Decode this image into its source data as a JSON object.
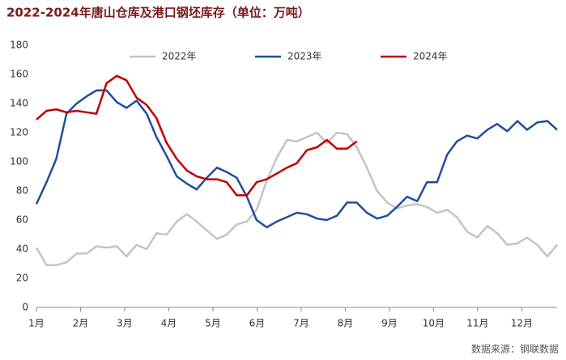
{
  "chart_data": {
    "type": "line",
    "title": "2022-2024年唐山仓库及港口钢坯库存（单位：万吨）",
    "source": "数据来源：钢联数据",
    "x": [
      1.0,
      1.23,
      1.45,
      1.68,
      1.91,
      2.14,
      2.36,
      2.59,
      2.82,
      3.04,
      3.27,
      3.5,
      3.72,
      3.95,
      4.18,
      4.41,
      4.63,
      4.86,
      5.09,
      5.31,
      5.54,
      5.77,
      5.99,
      6.22,
      6.45,
      6.68,
      6.9,
      7.13,
      7.36,
      7.58,
      7.81,
      8.04,
      8.26,
      8.49,
      8.72,
      8.95,
      9.17,
      9.4,
      9.63,
      9.85,
      10.08,
      10.31,
      10.53,
      10.76,
      10.99,
      11.22,
      11.44,
      11.67,
      11.9,
      12.12,
      12.35,
      12.58,
      12.8
    ],
    "series": [
      {
        "name": "2022年",
        "color": "#c4c4c4",
        "values": [
          41,
          29,
          29,
          31,
          37,
          37,
          42,
          41,
          42,
          35,
          43,
          40,
          51,
          50,
          59,
          64,
          59,
          53,
          47,
          50,
          57,
          59,
          67,
          87,
          103,
          115,
          114,
          117,
          120,
          113,
          120,
          119,
          110,
          96,
          80,
          72,
          68,
          70,
          71,
          69,
          65,
          67,
          62,
          52,
          48,
          56,
          51,
          43,
          44,
          48,
          43,
          35,
          43
        ]
      },
      {
        "name": "2023年",
        "color": "#1f4e9c",
        "values": [
          71,
          86,
          102,
          133,
          140,
          145,
          149,
          149,
          141,
          137,
          142,
          133,
          117,
          104,
          90,
          85,
          81,
          89,
          96,
          93,
          89,
          76,
          60,
          55,
          59,
          62,
          65,
          64,
          61,
          60,
          63,
          72,
          72,
          65,
          61,
          63,
          69,
          76,
          73,
          86,
          86,
          105,
          114,
          118,
          116,
          122,
          126,
          121,
          128,
          122,
          127,
          128,
          122
        ]
      },
      {
        "name": "2024年",
        "color": "#c00000",
        "values": [
          129,
          135,
          136,
          134,
          135,
          134,
          133,
          154,
          159,
          156,
          144,
          139,
          130,
          113,
          102,
          94,
          90,
          88,
          88,
          86,
          77,
          77,
          86,
          88,
          92,
          96,
          99,
          108,
          110,
          115,
          109,
          109,
          114,
          null,
          null,
          null,
          null,
          null,
          null,
          null,
          null,
          null,
          null,
          null,
          null,
          null,
          null,
          null,
          null,
          null,
          null,
          null,
          null
        ]
      }
    ],
    "xlim": [
      1,
      12.8
    ],
    "xticks": [
      {
        "value": 1,
        "label": "1月"
      },
      {
        "value": 2,
        "label": "2月"
      },
      {
        "value": 3,
        "label": "3月"
      },
      {
        "value": 4,
        "label": "4月"
      },
      {
        "value": 5,
        "label": "5月"
      },
      {
        "value": 6,
        "label": "6月"
      },
      {
        "value": 7,
        "label": "7月"
      },
      {
        "value": 8,
        "label": "8月"
      },
      {
        "value": 9,
        "label": "9月"
      },
      {
        "value": 10,
        "label": "10月"
      },
      {
        "value": 11,
        "label": "11月"
      },
      {
        "value": 12,
        "label": "12月"
      }
    ],
    "ylim": [
      0,
      180
    ],
    "yticks": [
      0,
      20,
      40,
      60,
      80,
      100,
      120,
      140,
      160,
      180
    ],
    "legend": "top"
  }
}
